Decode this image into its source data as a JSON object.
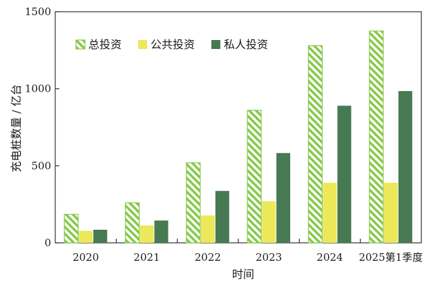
{
  "chart_data": {
    "type": "bar",
    "xlabel": "时间",
    "ylabel": "充电桩数量 / 亿台",
    "ylim": [
      0,
      1500
    ],
    "yticks": [
      0,
      500,
      1000,
      1500
    ],
    "categories": [
      "2020",
      "2021",
      "2022",
      "2023",
      "2024",
      "2025第1季度"
    ],
    "series": [
      {
        "name": "总投资",
        "values": [
          185,
          260,
          520,
          860,
          1280,
          1375
        ],
        "color": "#86c94a",
        "pattern": "hatched"
      },
      {
        "name": "公共投资",
        "values": [
          78,
          113,
          178,
          270,
          390,
          390
        ],
        "color": "#ece85a",
        "pattern": "solid"
      },
      {
        "name": "私人投资",
        "values": [
          85,
          145,
          337,
          583,
          890,
          985
        ],
        "color": "#477a52",
        "pattern": "solid"
      }
    ],
    "legend_position": "top-left",
    "grid": false
  }
}
